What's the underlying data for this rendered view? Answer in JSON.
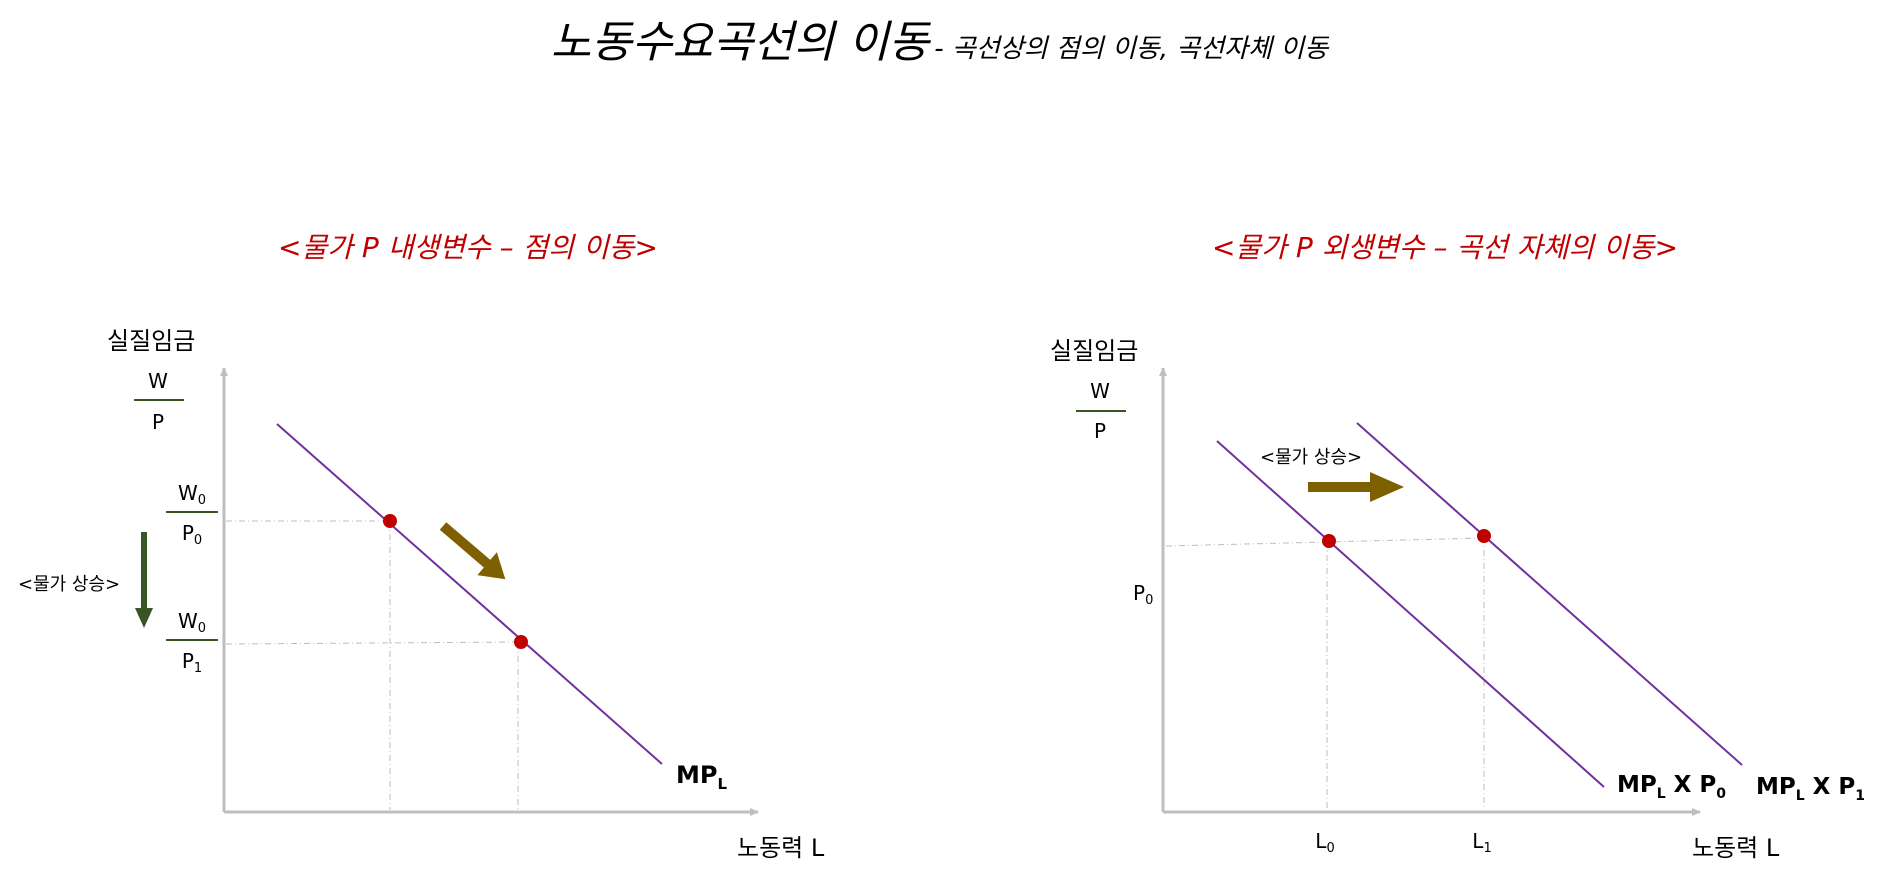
{
  "header": {
    "title": "노동수요곡선의 이동",
    "subtitle": "- 곡선상의 점의 이동, 곡선자체 이동"
  },
  "left_panel": {
    "title": "<물가 P 내생변수 – 점의 이동>",
    "y_axis_label": "실질임금",
    "y_fraction_num": "W",
    "y_fraction_den": "P",
    "tick1_num": "W",
    "tick1_num_sub": "0",
    "tick1_den": "P",
    "tick1_den_sub": "0",
    "tick2_num": "W",
    "tick2_num_sub": "0",
    "tick2_den": "P",
    "tick2_den_sub": "1",
    "side_note": "<물가 상승>",
    "x_axis_label": "노동력 L",
    "curve_label": "MP",
    "curve_label_sub": "L"
  },
  "right_panel": {
    "title": "<물가 P 외생변수 – 곡선 자체의 이동>",
    "y_axis_label": "실질임금",
    "y_fraction_num": "W",
    "y_fraction_den": "P",
    "y_tick": "P",
    "y_tick_sub": "0",
    "shift_note": "<물가 상승>",
    "x_tick0": "L",
    "x_tick0_sub": "0",
    "x_tick1": "L",
    "x_tick1_sub": "1",
    "x_axis_label": "노동력 L",
    "curve0_a": "MP",
    "curve0_sub_a": "L",
    "curve0_b": " X P",
    "curve0_sub_b": "0",
    "curve1_a": "MP",
    "curve1_sub_a": "L",
    "curve1_b": " X P",
    "curve1_sub_b": "1"
  },
  "colors": {
    "curve": "#7030a0",
    "point": "#c00000",
    "arrow_olive": "#7f6000",
    "arrow_green": "#375623",
    "axis": "#bfbfbf",
    "title_red": "#c00000"
  }
}
